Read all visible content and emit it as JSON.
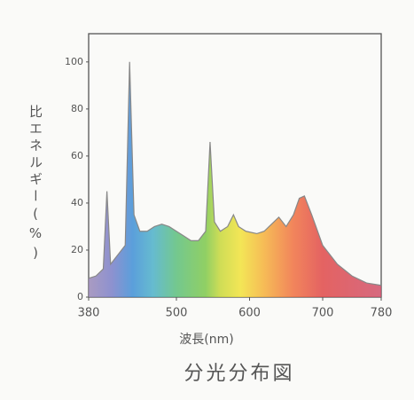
{
  "chart_data": {
    "type": "area",
    "title": "分光分布図",
    "x_label": "波長(nm)",
    "y_label": "比エネルギー(%)",
    "x": [
      380,
      390,
      400,
      405,
      410,
      420,
      430,
      436,
      442,
      450,
      460,
      470,
      480,
      490,
      500,
      510,
      520,
      530,
      540,
      546,
      552,
      560,
      570,
      578,
      585,
      595,
      610,
      620,
      630,
      640,
      650,
      660,
      668,
      675,
      685,
      700,
      720,
      740,
      760,
      780
    ],
    "values": [
      8,
      9,
      12,
      45,
      14,
      18,
      22,
      100,
      35,
      28,
      28,
      30,
      31,
      30,
      28,
      26,
      24,
      24,
      28,
      66,
      32,
      28,
      30,
      35,
      30,
      28,
      27,
      28,
      31,
      34,
      30,
      35,
      42,
      43,
      35,
      22,
      14,
      9,
      6,
      5
    ],
    "color": "#888888",
    "xlim": [
      380,
      780
    ],
    "ylim": [
      0,
      112
    ],
    "xticks": [
      380,
      500,
      600,
      700,
      780
    ],
    "yticks": [
      0,
      20,
      40,
      60,
      80,
      100
    ]
  }
}
